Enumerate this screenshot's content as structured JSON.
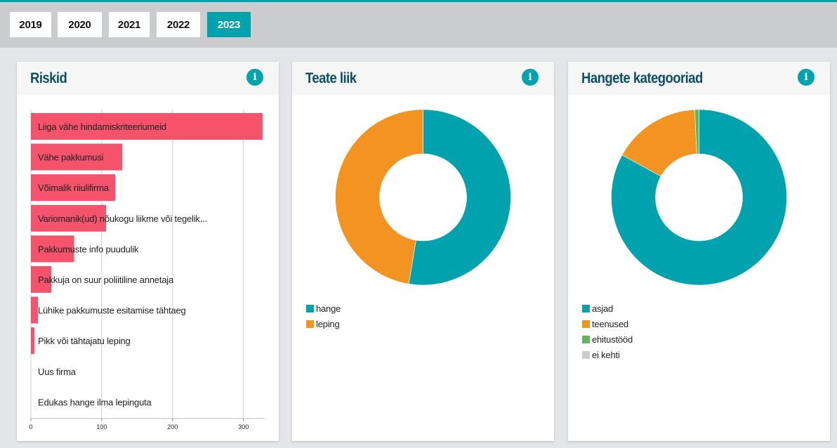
{
  "years": [
    {
      "label": "2019",
      "active": false
    },
    {
      "label": "2020",
      "active": false
    },
    {
      "label": "2021",
      "active": false
    },
    {
      "label": "2022",
      "active": false
    },
    {
      "label": "2023",
      "active": true
    }
  ],
  "cards": {
    "risks": {
      "title": "Riskid",
      "info": "i"
    },
    "notice": {
      "title": "Teate liik",
      "info": "i"
    },
    "categories": {
      "title": "Hangete kategooriad",
      "info": "i"
    }
  },
  "colors": {
    "accent": "#00a2ad",
    "bar": "#f4536b",
    "orange": "#f39322",
    "green": "#5cb85c",
    "grey": "#cccccc"
  },
  "chart_data": [
    {
      "type": "bar",
      "orientation": "horizontal",
      "title": "Riskid",
      "categories": [
        "Liiga vähe hindamiskriteeriumeid",
        "Vähe pakkumusi",
        "Võimalik riiulifirma",
        "Variomanik(ud) nõukogu liikme või tegelik...",
        "Pakkumuste info puudulik",
        "Pakkuja on suur poliitiline annetaja",
        "Lühike pakkumuste esitamise tähtaeg",
        "Pikk või tähtajatu leping",
        "Uus firma",
        "Edukas hange ilma lepinguta"
      ],
      "values": [
        327,
        129,
        119,
        106,
        61,
        29,
        10,
        5,
        0,
        0
      ],
      "xlim": [
        0,
        330
      ],
      "xticks": [
        "0",
        "100",
        "200",
        "300"
      ],
      "grid": true,
      "color": "#f4536b"
    },
    {
      "type": "pie",
      "donut": true,
      "title": "Teate liik",
      "labels": [
        "hange",
        "leping"
      ],
      "values": [
        52.6,
        47.4
      ],
      "colors": [
        "#00a2ad",
        "#f39322"
      ],
      "legend": "bottom-left"
    },
    {
      "type": "pie",
      "donut": true,
      "title": "Hangete kategooriad",
      "labels": [
        "asjad",
        "teenused",
        "ehitustööd",
        "ei kehti"
      ],
      "values": [
        83.0,
        16.2,
        0.8,
        0
      ],
      "colors": [
        "#00a2ad",
        "#f39322",
        "#5cb85c",
        "#cccccc"
      ],
      "legend": "bottom-left"
    }
  ]
}
